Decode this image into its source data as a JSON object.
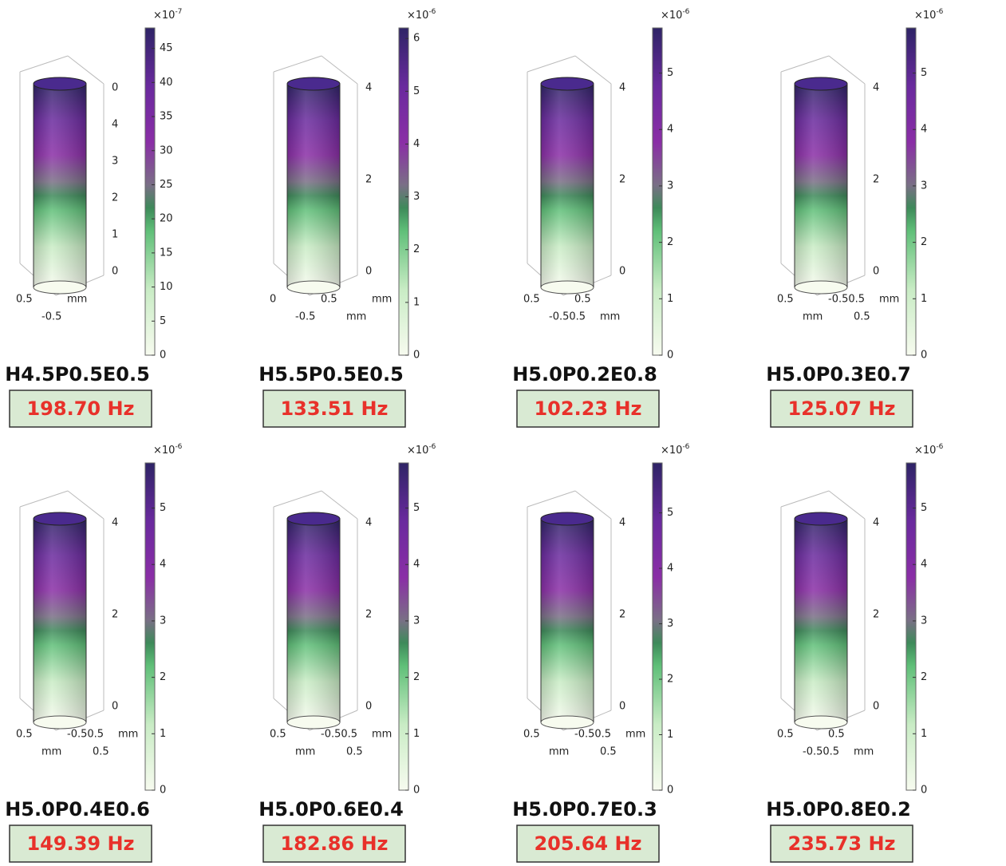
{
  "panels": [
    {
      "label": "H4.5P0.5E0.5",
      "frequency": "198.70 Hz",
      "scale_base": "×10",
      "scale_exponent": "-7",
      "range": [
        0,
        48
      ],
      "ticks": [
        0,
        5,
        10,
        15,
        20,
        25,
        30,
        35,
        40,
        45
      ],
      "z_labels": [
        "0",
        "1",
        "2",
        "3",
        "4",
        "0"
      ],
      "xy_labels": [
        "0.5",
        "-0.5",
        "mm"
      ]
    },
    {
      "label": "H5.5P0.5E0.5",
      "frequency": "133.51 Hz",
      "scale_base": "×10",
      "scale_exponent": "-6",
      "range": [
        0,
        6.2
      ],
      "ticks": [
        0,
        1,
        2,
        3,
        4,
        5,
        6
      ],
      "z_labels": [
        "0",
        "2",
        "4"
      ],
      "xy_labels": [
        "0",
        "-0.5",
        "0.5",
        "mm",
        "mm"
      ]
    },
    {
      "label": "H5.0P0.2E0.8",
      "frequency": "102.23 Hz",
      "scale_base": "×10",
      "scale_exponent": "-6",
      "range": [
        0,
        5.8
      ],
      "ticks": [
        0,
        1,
        2,
        3,
        4,
        5
      ],
      "z_labels": [
        "0",
        "2",
        "4"
      ],
      "xy_labels": [
        "0.5",
        "-0.50.5",
        "0.5",
        "mm"
      ]
    },
    {
      "label": "H5.0P0.3E0.7",
      "frequency": "125.07 Hz",
      "scale_base": "×10",
      "scale_exponent": "-6",
      "range": [
        0,
        5.8
      ],
      "ticks": [
        0,
        1,
        2,
        3,
        4,
        5
      ],
      "z_labels": [
        "0",
        "2",
        "4"
      ],
      "xy_labels": [
        "0.5",
        "mm",
        "-0.50.5",
        "0.5",
        "mm"
      ]
    },
    {
      "label": "H5.0P0.4E0.6",
      "frequency": "149.39 Hz",
      "scale_base": "×10",
      "scale_exponent": "-6",
      "range": [
        0,
        5.8
      ],
      "ticks": [
        0,
        1,
        2,
        3,
        4,
        5
      ],
      "z_labels": [
        "0",
        "2",
        "4"
      ],
      "xy_labels": [
        "0.5",
        "mm",
        "-0.50.5",
        "0.5",
        "mm"
      ]
    },
    {
      "label": "H5.0P0.6E0.4",
      "frequency": "182.86 Hz",
      "scale_base": "×10",
      "scale_exponent": "-6",
      "range": [
        0,
        5.8
      ],
      "ticks": [
        0,
        1,
        2,
        3,
        4,
        5
      ],
      "z_labels": [
        "0",
        "2",
        "4"
      ],
      "xy_labels": [
        "0.5",
        "mm",
        "-0.50.5",
        "0.5",
        "mm"
      ]
    },
    {
      "label": "H5.0P0.7E0.3",
      "frequency": "205.64 Hz",
      "scale_base": "×10",
      "scale_exponent": "-6",
      "range": [
        0,
        5.9
      ],
      "ticks": [
        0,
        1,
        2,
        3,
        4,
        5
      ],
      "z_labels": [
        "0",
        "2",
        "4"
      ],
      "xy_labels": [
        "0.5",
        "mm",
        "-0.50.5",
        "0.5",
        "mm"
      ]
    },
    {
      "label": "H5.0P0.8E0.2",
      "frequency": "235.73 Hz",
      "scale_base": "×10",
      "scale_exponent": "-6",
      "range": [
        0,
        5.8
      ],
      "ticks": [
        0,
        1,
        2,
        3,
        4,
        5
      ],
      "z_labels": [
        "0",
        "2",
        "4"
      ],
      "xy_labels": [
        "0.5",
        "-0.50.5",
        "0.5",
        "mm"
      ]
    }
  ]
}
